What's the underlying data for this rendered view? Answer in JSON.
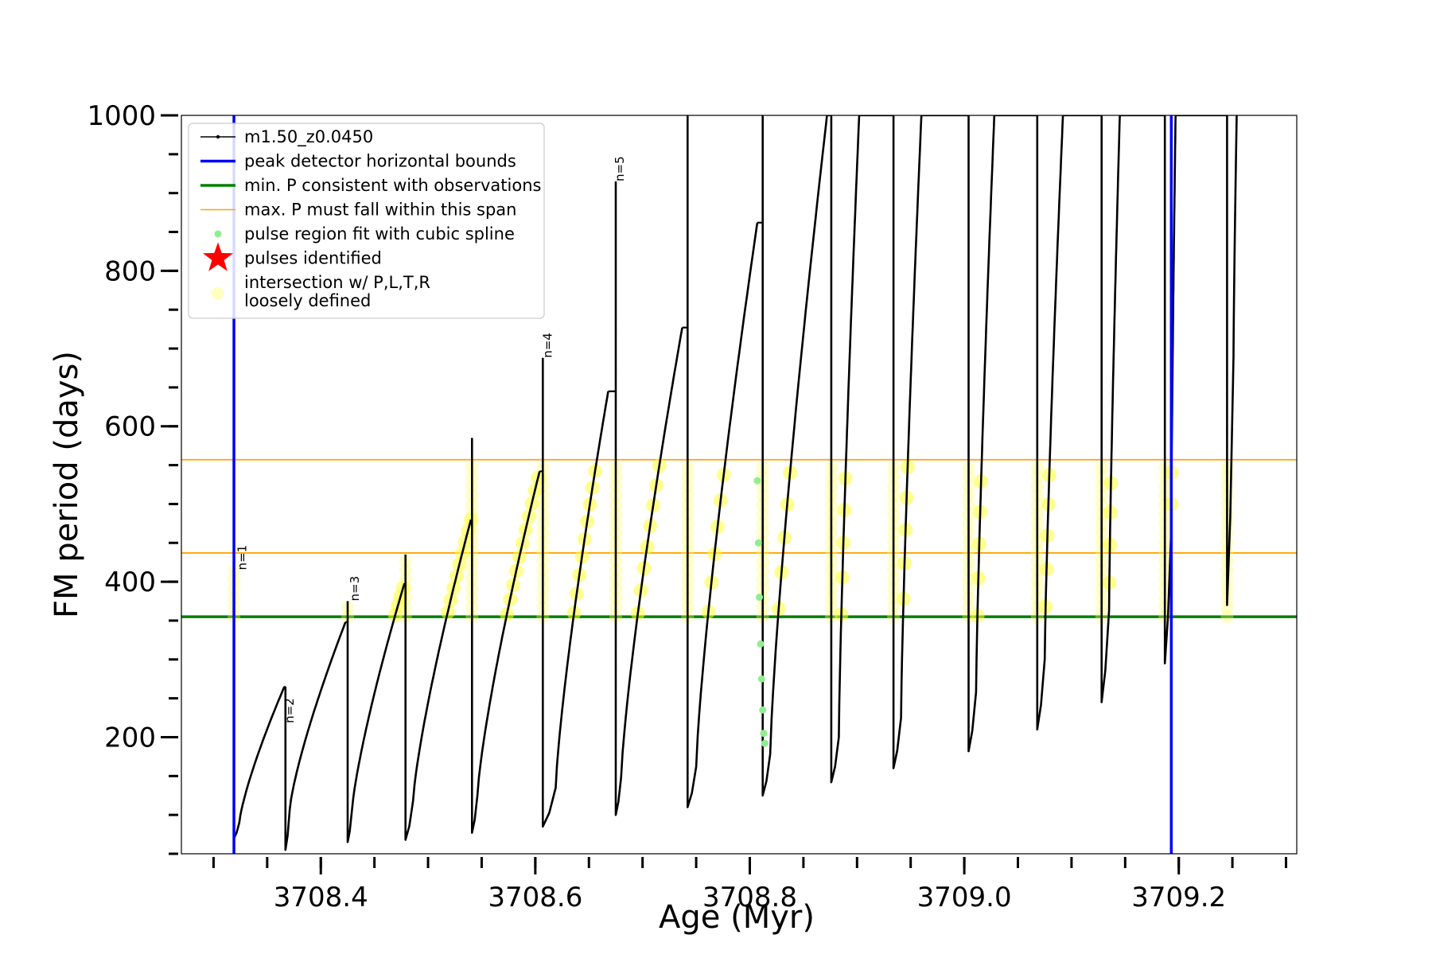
{
  "chart_data": {
    "type": "line",
    "xlabel": "Age (Myr)",
    "ylabel": "FM period (days)",
    "xlim": [
      3708.27,
      3709.31
    ],
    "ylim": [
      50,
      1000
    ],
    "x_ticks": [
      3708.4,
      3708.6,
      3708.8,
      3709.0,
      3709.2
    ],
    "x_tick_labels": [
      "3708.4",
      "3708.6",
      "3708.8",
      "3709.0",
      "3709.2"
    ],
    "y_ticks": [
      200,
      400,
      600,
      800,
      1000
    ],
    "y_tick_labels": [
      "200",
      "400",
      "600",
      "800",
      "1000"
    ],
    "legend_position": "top-left",
    "legend": [
      {
        "label": "m1.50_z0.0450",
        "marker": "line-dot",
        "color": "#000000"
      },
      {
        "label": "peak detector horizontal bounds",
        "marker": "line",
        "color": "#0000ff"
      },
      {
        "label": "min. P consistent with observations",
        "marker": "line",
        "color": "#008000"
      },
      {
        "label": "max. P must fall within this span",
        "marker": "line",
        "color": "#ffa500"
      },
      {
        "label": "pulse region fit with cubic spline",
        "marker": "dot",
        "color": "#90ee90"
      },
      {
        "label": "pulses identified",
        "marker": "star",
        "color": "#ff0000"
      },
      {
        "label": "intersection w/ P,L,T,R",
        "label2": "loosely defined",
        "marker": "circle",
        "color": "#ffffc0"
      }
    ],
    "vertical_lines": [
      {
        "x": 3708.319,
        "color": "#0000ff"
      },
      {
        "x": 3709.193,
        "color": "#0000ff"
      }
    ],
    "horizontal_lines": [
      {
        "y": 355,
        "color": "#008000"
      },
      {
        "y": 437,
        "color": "#ffa500"
      },
      {
        "y": 557,
        "color": "#ffa500"
      }
    ],
    "annotations": [
      {
        "text": "n=1",
        "x": 3708.323,
        "y": 415
      },
      {
        "text": "n=2",
        "x": 3708.367,
        "y": 218
      },
      {
        "text": "n=3",
        "x": 3708.428,
        "y": 375
      },
      {
        "text": "n=4",
        "x": 3708.608,
        "y": 688
      },
      {
        "text": "n=5",
        "x": 3708.675,
        "y": 915
      }
    ],
    "series": [
      {
        "name": "m1.50_z0.0450",
        "color": "#000000",
        "pulses": [
          {
            "x0": 3708.319,
            "x1": 3708.324,
            "y_start": 415,
            "y_min": 70,
            "y_recover": 90,
            "x_peak": 3708.366,
            "y_peak": 265
          },
          {
            "x0": 3708.367,
            "x1": 3708.371,
            "y_start": 265,
            "y_min": 55,
            "y_recover": 107,
            "x_peak": 3708.423,
            "y_peak": 348
          },
          {
            "x0": 3708.425,
            "x1": 3708.429,
            "y_start": 375,
            "y_min": 65,
            "y_recover": 105,
            "x_peak": 3708.478,
            "y_peak": 398
          },
          {
            "x0": 3708.479,
            "x1": 3708.486,
            "y_start": 435,
            "y_min": 68,
            "y_recover": 118,
            "x_peak": 3708.54,
            "y_peak": 480
          },
          {
            "x0": 3708.541,
            "x1": 3708.546,
            "y_start": 585,
            "y_min": 77,
            "y_recover": 125,
            "x_peak": 3708.604,
            "y_peak": 542
          },
          {
            "x0": 3708.607,
            "x1": 3708.619,
            "y_start": 688,
            "y_min": 85,
            "y_recover": 135,
            "x_peak": 3708.668,
            "y_peak": 645
          },
          {
            "x0": 3708.675,
            "x1": 3708.68,
            "y_start": 915,
            "y_min": 100,
            "y_recover": 148,
            "x_peak": 3708.737,
            "y_peak": 727
          },
          {
            "x0": 3708.742,
            "x1": 3708.75,
            "y_start": 1000,
            "y_min": 110,
            "y_recover": 162,
            "x_peak": 3708.807,
            "y_peak": 862
          },
          {
            "x0": 3708.812,
            "x1": 3708.819,
            "y_start": 1000,
            "y_min": 125,
            "y_recover": 178,
            "x_peak": 3708.872,
            "y_peak": 1000
          },
          {
            "x0": 3708.876,
            "x1": 3708.883,
            "y_start": 1000,
            "y_min": 142,
            "y_recover": 200,
            "x_peak": 3708.902,
            "y_peak": 1000
          },
          {
            "x0": 3708.934,
            "x1": 3708.941,
            "y_start": 1000,
            "y_min": 160,
            "y_recover": 225,
            "x_peak": 3708.96,
            "y_peak": 1000
          },
          {
            "x0": 3709.004,
            "x1": 3709.011,
            "y_start": 1000,
            "y_min": 182,
            "y_recover": 258,
            "x_peak": 3709.028,
            "y_peak": 1000
          },
          {
            "x0": 3709.068,
            "x1": 3709.075,
            "y_start": 1000,
            "y_min": 210,
            "y_recover": 300,
            "x_peak": 3709.092,
            "y_peak": 1000
          },
          {
            "x0": 3709.128,
            "x1": 3709.135,
            "y_start": 1000,
            "y_min": 245,
            "y_recover": 363,
            "x_peak": 3709.145,
            "y_peak": 1000
          },
          {
            "x0": 3709.187,
            "x1": 3709.193,
            "y_start": 1000,
            "y_min": 295,
            "y_recover": 470,
            "x_peak": 3709.197,
            "y_peak": 1000
          },
          {
            "x0": 3709.245,
            "x1": 3709.251,
            "y_start": 1000,
            "y_min": 370,
            "y_recover": 690,
            "x_peak": 3709.254,
            "y_peak": 1000
          }
        ]
      },
      {
        "name": "pulse region fit with cubic spline",
        "color": "#90ee90",
        "points": [
          [
            3708.807,
            530
          ],
          [
            3708.808,
            450
          ],
          [
            3708.809,
            380
          ],
          [
            3708.81,
            320
          ],
          [
            3708.811,
            275
          ],
          [
            3708.812,
            235
          ],
          [
            3708.813,
            205
          ],
          [
            3708.814,
            192
          ]
        ]
      }
    ]
  }
}
